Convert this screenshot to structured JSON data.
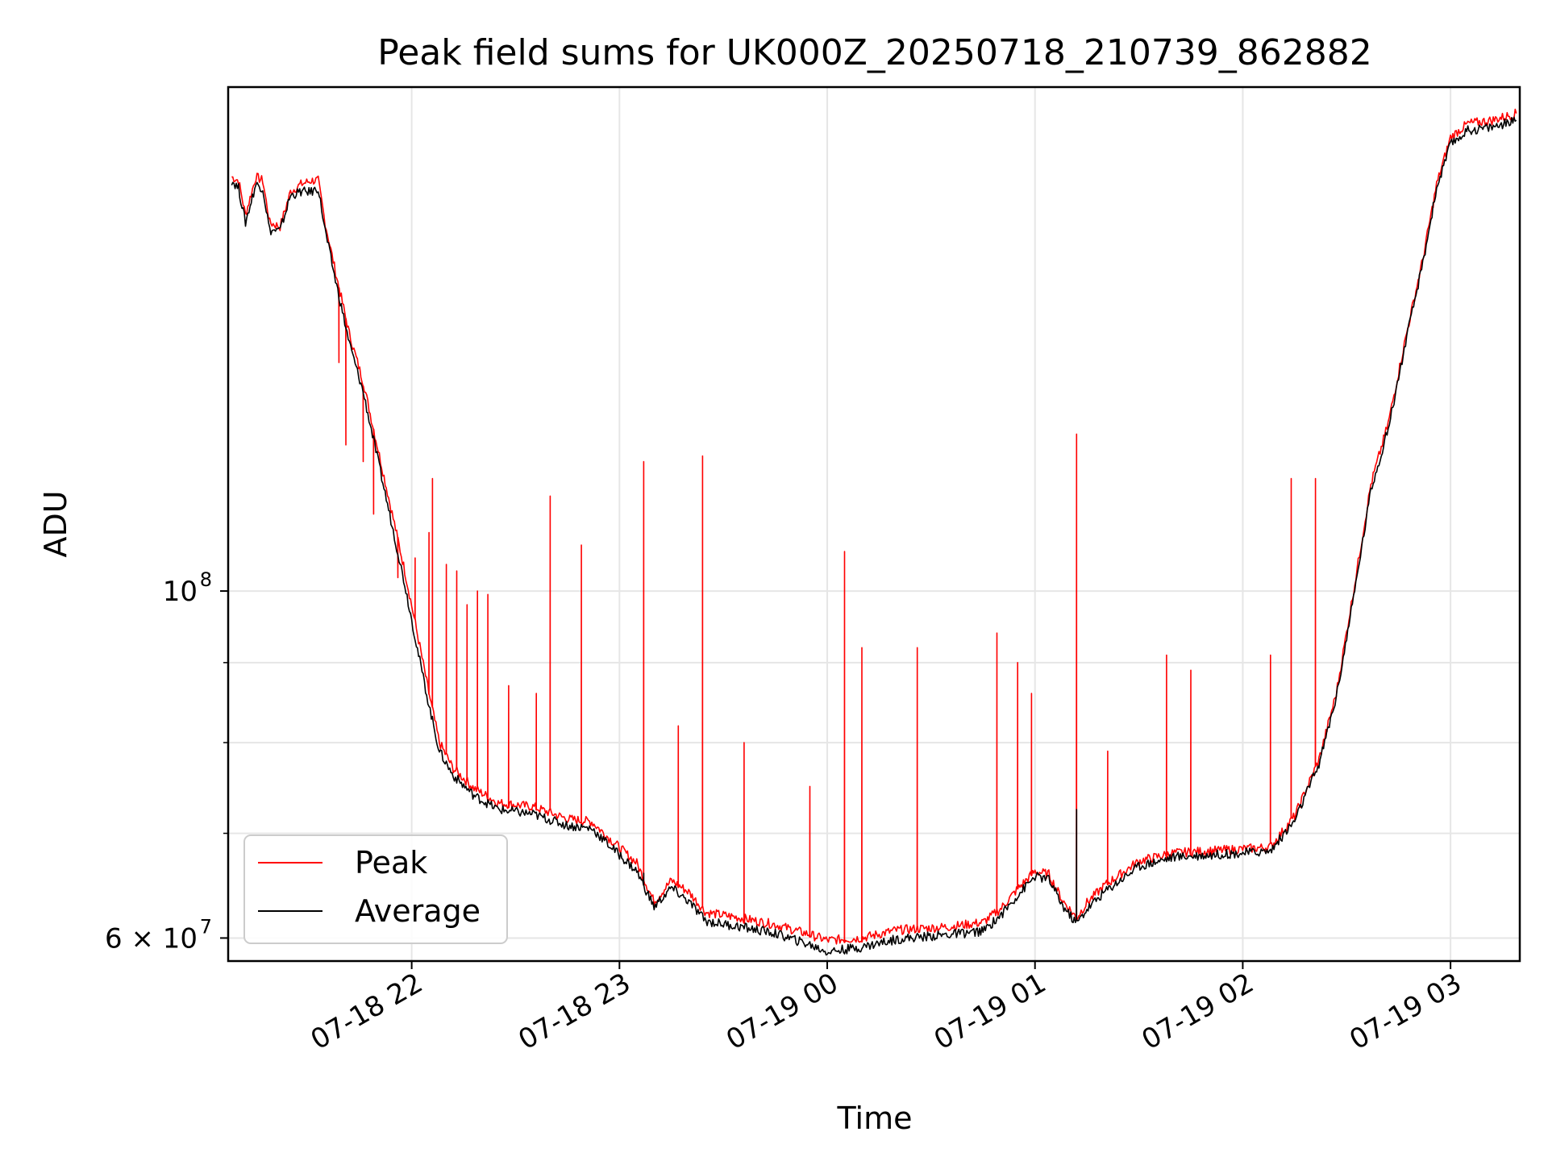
{
  "chart_data": {
    "type": "line",
    "title": "Peak field sums for UK000Z_20250718_210739_862882",
    "xlabel": "Time",
    "ylabel": "ADU",
    "y_scale": "log",
    "grid": true,
    "legend_position": "lower-left",
    "x_range": [
      "2025-07-18 21:07:39",
      "2025-07-19 03:20:00"
    ],
    "y_range": [
      58000000,
      210000000
    ],
    "x_ticks": [
      {
        "label": "07-18 22",
        "value": "2025-07-18 22:00"
      },
      {
        "label": "07-18 23",
        "value": "2025-07-18 23:00"
      },
      {
        "label": "07-19 00",
        "value": "2025-07-19 00:00"
      },
      {
        "label": "07-19 01",
        "value": "2025-07-19 01:00"
      },
      {
        "label": "07-19 02",
        "value": "2025-07-19 02:00"
      },
      {
        "label": "07-19 03",
        "value": "2025-07-19 03:00"
      }
    ],
    "y_ticks": [
      {
        "label": "6 × 10",
        "exp": "7",
        "value": 60000000
      },
      {
        "label": "10",
        "exp": "8",
        "value": 100000000
      }
    ],
    "series": [
      {
        "name": "Peak",
        "color": "#ff0000",
        "points": [
          [
            "07-18 21:08",
            184000000
          ],
          [
            "07-18 21:10",
            183000000
          ],
          [
            "07-18 21:12",
            174000000
          ],
          [
            "07-18 21:15",
            184000000
          ],
          [
            "07-18 21:17",
            183000000
          ],
          [
            "07-18 21:19",
            172000000
          ],
          [
            "07-18 21:22",
            171000000
          ],
          [
            "07-18 21:25",
            180000000
          ],
          [
            "07-18 21:28",
            182000000
          ],
          [
            "07-18 21:31",
            183000000
          ],
          [
            "07-18 21:33",
            183000000
          ],
          [
            "07-18 21:35",
            172000000
          ],
          [
            "07-18 21:38",
            160000000
          ],
          [
            "07-18 21:42",
            146000000
          ],
          [
            "07-18 21:46",
            136000000
          ],
          [
            "07-18 21:50",
            124000000
          ],
          [
            "07-18 21:54",
            113000000
          ],
          [
            "07-18 21:58",
            103000000
          ],
          [
            "07-18 22:02",
            93000000
          ],
          [
            "07-18 22:05",
            86000000
          ],
          [
            "07-18 22:08",
            80000000
          ],
          [
            "07-18 22:12",
            77000000
          ],
          [
            "07-18 22:18",
            74800000
          ],
          [
            "07-18 22:25",
            73200000
          ],
          [
            "07-18 22:35",
            72800000
          ],
          [
            "07-18 22:45",
            71500000
          ],
          [
            "07-18 22:52",
            71200000
          ],
          [
            "07-18 22:57",
            69500000
          ],
          [
            "07-18 23:05",
            67000000
          ],
          [
            "07-18 23:10",
            63300000
          ],
          [
            "07-18 23:15",
            65300000
          ],
          [
            "07-18 23:20",
            64200000
          ],
          [
            "07-18 23:25",
            62300000
          ],
          [
            "07-18 23:35",
            61800000
          ],
          [
            "07-18 23:45",
            61200000
          ],
          [
            "07-18 23:55",
            60300000
          ],
          [
            "07-19 00:00",
            59800000
          ],
          [
            "07-19 00:10",
            60000000
          ],
          [
            "07-19 00:20",
            60700000
          ],
          [
            "07-19 00:35",
            61000000
          ],
          [
            "07-19 00:45",
            61400000
          ],
          [
            "07-19 00:50",
            62600000
          ],
          [
            "07-19 00:55",
            64500000
          ],
          [
            "07-19 01:00",
            66200000
          ],
          [
            "07-19 01:04",
            65900000
          ],
          [
            "07-19 01:08",
            63400000
          ],
          [
            "07-19 01:12",
            61800000
          ],
          [
            "07-19 01:15",
            63200000
          ],
          [
            "07-19 01:20",
            64800000
          ],
          [
            "07-19 01:30",
            67200000
          ],
          [
            "07-19 01:40",
            68000000
          ],
          [
            "07-19 01:50",
            68200000
          ],
          [
            "07-19 02:00",
            68400000
          ],
          [
            "07-19 02:08",
            68600000
          ],
          [
            "07-19 02:15",
            71800000
          ],
          [
            "07-19 02:22",
            78000000
          ],
          [
            "07-19 02:27",
            86000000
          ],
          [
            "07-19 02:32",
            100000000
          ],
          [
            "07-19 02:37",
            117000000
          ],
          [
            "07-19 02:42",
            128000000
          ],
          [
            "07-19 02:47",
            145000000
          ],
          [
            "07-19 02:52",
            163000000
          ],
          [
            "07-19 02:56",
            182000000
          ],
          [
            "07-19 03:00",
            195000000
          ],
          [
            "07-19 03:05",
            199000000
          ],
          [
            "07-19 03:12",
            200000000
          ],
          [
            "07-19 03:19",
            202000000
          ]
        ],
        "spikes": [
          [
            "07-18 21:39",
            140000000
          ],
          [
            "07-18 21:41",
            124000000
          ],
          [
            "07-18 21:46",
            121000000
          ],
          [
            "07-18 21:49",
            112000000
          ],
          [
            "07-18 21:56",
            102000000
          ],
          [
            "07-18 22:01",
            105000000
          ],
          [
            "07-18 22:05",
            109000000
          ],
          [
            "07-18 22:06",
            118000000
          ],
          [
            "07-18 22:10",
            104000000
          ],
          [
            "07-18 22:13",
            103000000
          ],
          [
            "07-18 22:16",
            98000000
          ],
          [
            "07-18 22:19",
            100000000
          ],
          [
            "07-18 22:22",
            99500000
          ],
          [
            "07-18 22:28",
            87000000
          ],
          [
            "07-18 22:36",
            86000000
          ],
          [
            "07-18 22:40",
            115000000
          ],
          [
            "07-18 22:49",
            107000000
          ],
          [
            "07-18 23:07",
            121000000
          ],
          [
            "07-18 23:17",
            82000000
          ],
          [
            "07-18 23:24",
            122000000
          ],
          [
            "07-18 23:36",
            80000000
          ],
          [
            "07-18 23:55",
            75000000
          ],
          [
            "07-19 00:05",
            106000000
          ],
          [
            "07-19 00:10",
            92000000
          ],
          [
            "07-19 00:26",
            92000000
          ],
          [
            "07-19 00:49",
            94000000
          ],
          [
            "07-19 00:55",
            90000000
          ],
          [
            "07-19 00:59",
            86000000
          ],
          [
            "07-19 01:12",
            126000000
          ],
          [
            "07-19 01:21",
            79000000
          ],
          [
            "07-19 01:38",
            91000000
          ],
          [
            "07-19 01:45",
            89000000
          ],
          [
            "07-19 02:08",
            91000000
          ],
          [
            "07-19 02:14",
            118000000
          ],
          [
            "07-19 02:21",
            118000000
          ]
        ]
      },
      {
        "name": "Average",
        "color": "#000000",
        "points": [
          [
            "07-18 21:08",
            183000000
          ],
          [
            "07-18 21:10",
            181000000
          ],
          [
            "07-18 21:12",
            172000000
          ],
          [
            "07-18 21:15",
            182000000
          ],
          [
            "07-18 21:17",
            181000000
          ],
          [
            "07-18 21:19",
            170000000
          ],
          [
            "07-18 21:22",
            170000000
          ],
          [
            "07-18 21:25",
            179000000
          ],
          [
            "07-18 21:28",
            180000000
          ],
          [
            "07-18 21:31",
            180000000
          ],
          [
            "07-18 21:33",
            181000000
          ],
          [
            "07-18 21:35",
            170000000
          ],
          [
            "07-18 21:38",
            158000000
          ],
          [
            "07-18 21:42",
            144000000
          ],
          [
            "07-18 21:46",
            134000000
          ],
          [
            "07-18 21:50",
            122000000
          ],
          [
            "07-18 21:54",
            111000000
          ],
          [
            "07-18 21:58",
            101000000
          ],
          [
            "07-18 22:02",
            91000000
          ],
          [
            "07-18 22:05",
            84500000
          ],
          [
            "07-18 22:08",
            79000000
          ],
          [
            "07-18 22:12",
            76200000
          ],
          [
            "07-18 22:18",
            74000000
          ],
          [
            "07-18 22:25",
            72500000
          ],
          [
            "07-18 22:35",
            72000000
          ],
          [
            "07-18 22:45",
            70800000
          ],
          [
            "07-18 22:52",
            70500000
          ],
          [
            "07-18 22:57",
            68800000
          ],
          [
            "07-18 23:05",
            66200000
          ],
          [
            "07-18 23:10",
            62800000
          ],
          [
            "07-18 23:15",
            64600000
          ],
          [
            "07-18 23:20",
            63300000
          ],
          [
            "07-18 23:25",
            61500000
          ],
          [
            "07-18 23:35",
            61000000
          ],
          [
            "07-18 23:45",
            60400000
          ],
          [
            "07-18 23:55",
            59400000
          ],
          [
            "07-19 00:00",
            58800000
          ],
          [
            "07-19 00:10",
            59200000
          ],
          [
            "07-19 00:20",
            59900000
          ],
          [
            "07-19 00:35",
            60300000
          ],
          [
            "07-19 00:45",
            60600000
          ],
          [
            "07-19 00:50",
            62000000
          ],
          [
            "07-19 00:55",
            63900000
          ],
          [
            "07-19 01:00",
            65700000
          ],
          [
            "07-19 01:04",
            65400000
          ],
          [
            "07-19 01:08",
            62900000
          ],
          [
            "07-19 01:12",
            61300000
          ],
          [
            "07-19 01:15",
            62600000
          ],
          [
            "07-19 01:20",
            64200000
          ],
          [
            "07-19 01:30",
            66700000
          ],
          [
            "07-19 01:40",
            67600000
          ],
          [
            "07-19 01:50",
            67800000
          ],
          [
            "07-19 02:00",
            68000000
          ],
          [
            "07-19 02:08",
            68200000
          ],
          [
            "07-19 02:15",
            71300000
          ],
          [
            "07-19 02:22",
            77500000
          ],
          [
            "07-19 02:27",
            85500000
          ],
          [
            "07-19 02:32",
            99000000
          ],
          [
            "07-19 02:37",
            116000000
          ],
          [
            "07-19 02:42",
            127000000
          ],
          [
            "07-19 02:47",
            144000000
          ],
          [
            "07-19 02:52",
            162000000
          ],
          [
            "07-19 02:56",
            181000000
          ],
          [
            "07-19 03:00",
            193000000
          ],
          [
            "07-19 03:05",
            197000000
          ],
          [
            "07-19 03:12",
            198000000
          ],
          [
            "07-19 03:19",
            200000000
          ]
        ],
        "spikes": [
          [
            "07-19 01:12",
            72500000
          ],
          [
            "07-18 23:07",
            66000000
          ]
        ]
      }
    ]
  }
}
